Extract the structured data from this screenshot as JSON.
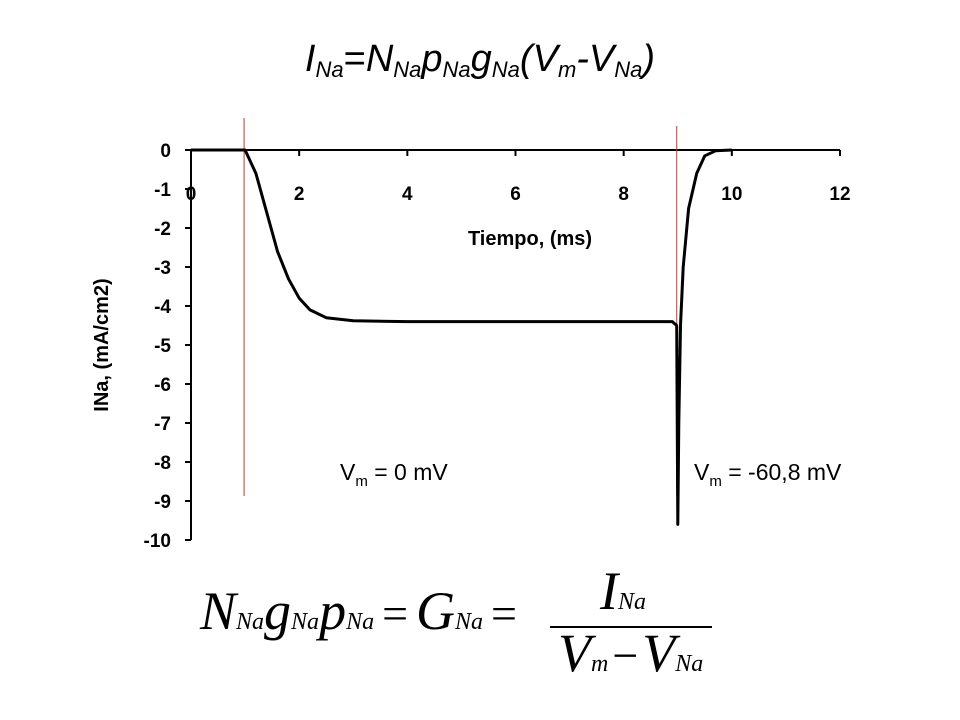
{
  "title": {
    "I": "I",
    "I_sub": "Na",
    "eq": "=",
    "N": "N",
    "N_sub": "Na",
    "p": "p",
    "p_sub": "Na",
    "g": "g",
    "g_sub": "Na",
    "open": "(",
    "Vm": "V",
    "Vm_sub": "m",
    "minus": "-",
    "Vna": "V",
    "Vna_sub": "Na",
    "close": ")"
  },
  "annotations": {
    "left": {
      "V": "V",
      "sub": "m",
      "rest": " = 0 mV"
    },
    "right": {
      "V": "V",
      "sub": "m",
      "rest": " = -60,8 mV"
    }
  },
  "formula": {
    "N": "N",
    "N_sub": "Na",
    "g": "g",
    "g_sub": "Na",
    "p": "p",
    "p_sub": "Na",
    "eq1": "=",
    "G": "G",
    "G_sub": "Na",
    "eq2": "=",
    "num_I": "I",
    "num_I_sub": "Na",
    "den_Vm": "V",
    "den_Vm_sub": "m",
    "den_minus": "−",
    "den_Vna": "V",
    "den_Vna_sub": "Na"
  },
  "colors": {
    "curve": "#000000",
    "markers": "#c0392b"
  },
  "chart_data": {
    "type": "line",
    "xlabel": "Tiempo, (ms)",
    "ylabel": "INa, (mA/cm2)",
    "xlim": [
      0,
      12
    ],
    "ylim": [
      -10,
      0
    ],
    "xticks": [
      "0",
      "2",
      "4",
      "6",
      "8",
      "10",
      "12"
    ],
    "yticks": [
      "0",
      "-1",
      "-2",
      "-3",
      "-4",
      "-5",
      "-6",
      "-7",
      "-8",
      "-9",
      "-10"
    ],
    "grid": false,
    "x": [
      0,
      1.0,
      1.2,
      1.4,
      1.6,
      1.8,
      2.0,
      2.2,
      2.5,
      3.0,
      4.0,
      6.0,
      8.0,
      8.9,
      8.98,
      9.0,
      9.02,
      9.05,
      9.1,
      9.2,
      9.35,
      9.5,
      9.7,
      10.0
    ],
    "y": [
      0,
      0,
      -0.6,
      -1.6,
      -2.6,
      -3.3,
      -3.8,
      -4.1,
      -4.3,
      -4.38,
      -4.4,
      -4.4,
      -4.4,
      -4.4,
      -4.5,
      -9.6,
      -7.0,
      -4.5,
      -3.0,
      -1.5,
      -0.6,
      -0.15,
      -0.02,
      0
    ],
    "markers_x": [
      1.0,
      9.0
    ]
  }
}
